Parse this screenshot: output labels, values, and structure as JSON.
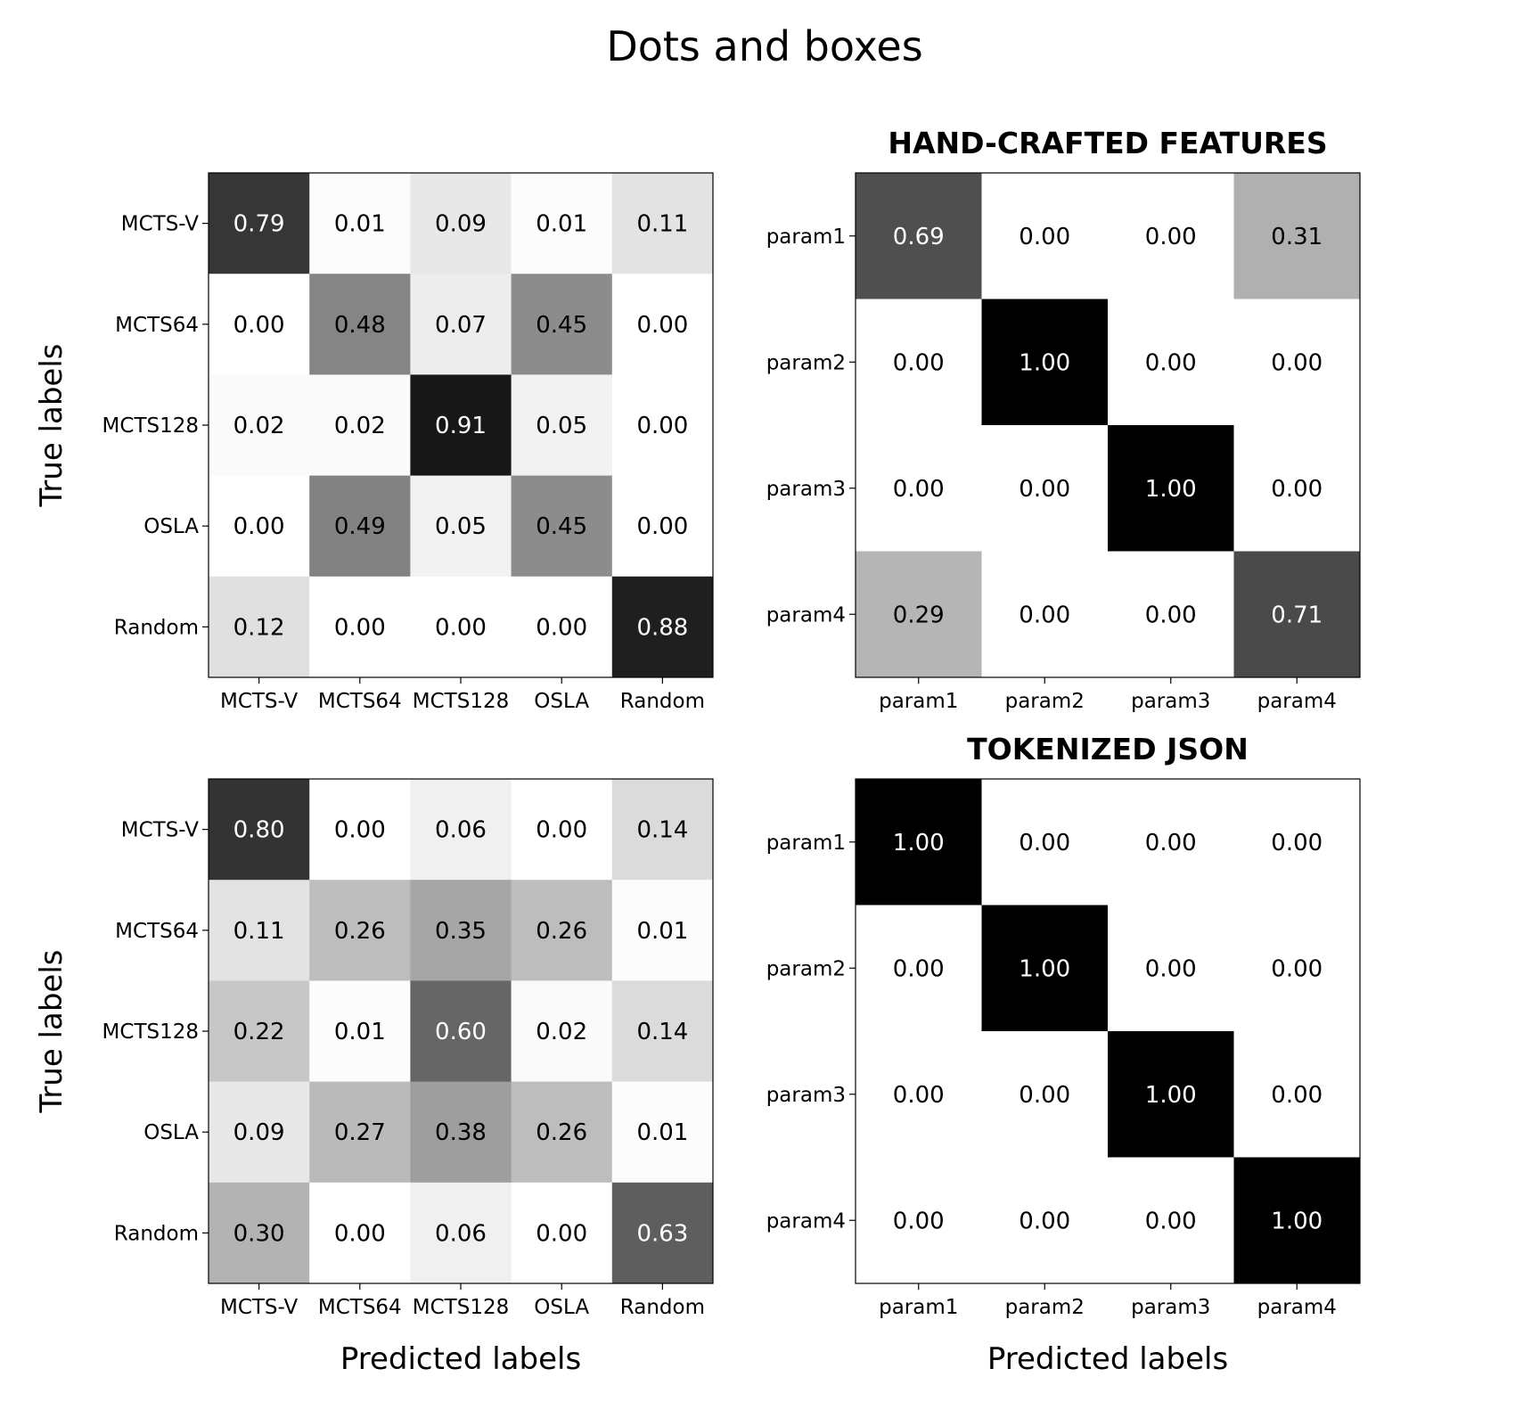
{
  "figure": {
    "title": "Dots and boxes"
  },
  "chart_data": [
    {
      "type": "heatmap",
      "title": "",
      "xlabel": "",
      "ylabel": "True labels",
      "x_categories": [
        "MCTS-V",
        "MCTS64",
        "MCTS128",
        "OSLA",
        "Random"
      ],
      "y_categories": [
        "MCTS-V",
        "MCTS64",
        "MCTS128",
        "OSLA",
        "Random"
      ],
      "values": [
        [
          0.79,
          0.01,
          0.09,
          0.01,
          0.11
        ],
        [
          0.0,
          0.48,
          0.07,
          0.45,
          0.0
        ],
        [
          0.02,
          0.02,
          0.91,
          0.05,
          0.0
        ],
        [
          0.0,
          0.49,
          0.05,
          0.45,
          0.0
        ],
        [
          0.12,
          0.0,
          0.0,
          0.0,
          0.88
        ]
      ],
      "value_range": [
        0,
        1
      ],
      "colormap": "Greys"
    },
    {
      "type": "heatmap",
      "title": "HAND-CRAFTED FEATURES",
      "xlabel": "",
      "ylabel": "",
      "x_categories": [
        "param1",
        "param2",
        "param3",
        "param4"
      ],
      "y_categories": [
        "param1",
        "param2",
        "param3",
        "param4"
      ],
      "values": [
        [
          0.69,
          0.0,
          0.0,
          0.31
        ],
        [
          0.0,
          1.0,
          0.0,
          0.0
        ],
        [
          0.0,
          0.0,
          1.0,
          0.0
        ],
        [
          0.29,
          0.0,
          0.0,
          0.71
        ]
      ],
      "value_range": [
        0,
        1
      ],
      "colormap": "Greys"
    },
    {
      "type": "heatmap",
      "title": "",
      "xlabel": "Predicted labels",
      "ylabel": "True labels",
      "x_categories": [
        "MCTS-V",
        "MCTS64",
        "MCTS128",
        "OSLA",
        "Random"
      ],
      "y_categories": [
        "MCTS-V",
        "MCTS64",
        "MCTS128",
        "OSLA",
        "Random"
      ],
      "values": [
        [
          0.8,
          0.0,
          0.06,
          0.0,
          0.14
        ],
        [
          0.11,
          0.26,
          0.35,
          0.26,
          0.01
        ],
        [
          0.22,
          0.01,
          0.6,
          0.02,
          0.14
        ],
        [
          0.09,
          0.27,
          0.38,
          0.26,
          0.01
        ],
        [
          0.3,
          0.0,
          0.06,
          0.0,
          0.63
        ]
      ],
      "value_range": [
        0,
        1
      ],
      "colormap": "Greys"
    },
    {
      "type": "heatmap",
      "title": "TOKENIZED JSON",
      "xlabel": "Predicted labels",
      "ylabel": "",
      "x_categories": [
        "param1",
        "param2",
        "param3",
        "param4"
      ],
      "y_categories": [
        "param1",
        "param2",
        "param3",
        "param4"
      ],
      "values": [
        [
          1.0,
          0.0,
          0.0,
          0.0
        ],
        [
          0.0,
          1.0,
          0.0,
          0.0
        ],
        [
          0.0,
          0.0,
          1.0,
          0.0
        ],
        [
          0.0,
          0.0,
          0.0,
          1.0
        ]
      ],
      "value_range": [
        0,
        1
      ],
      "colormap": "Greys"
    }
  ]
}
